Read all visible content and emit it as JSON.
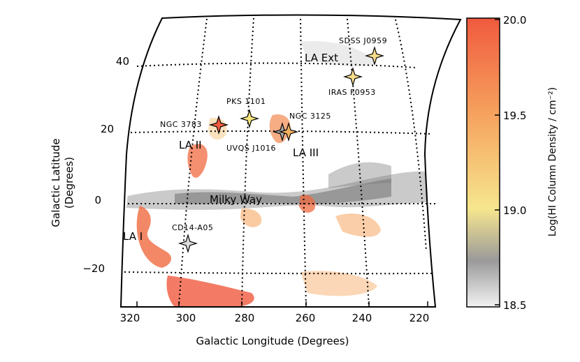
{
  "map": {
    "x_axis_label": "Galactic Longitude (Degrees)",
    "y_axis_label_line1": "Galactic Latitude",
    "y_axis_label_line2": "(Degrees)",
    "x_ticks": [
      "320",
      "300",
      "280",
      "260",
      "240",
      "220"
    ],
    "y_ticks": [
      "40",
      "20",
      "0",
      "−20"
    ],
    "regions": {
      "la_i": "LA I",
      "la_ii": "LA II",
      "la_iii": "LA III",
      "la_ext": "LA Ext",
      "milky_way": "Milky Way"
    },
    "sources": [
      {
        "name": "SDSS J0959",
        "color": "#f6dc8c"
      },
      {
        "name": "IRAS F0953",
        "color": "#f6dc8c"
      },
      {
        "name": "PKS 1101",
        "color": "#f4e47e"
      },
      {
        "name": "NGC 3783",
        "color": "#f25a3e"
      },
      {
        "name": "NGC 3125",
        "color": "#f2b160"
      },
      {
        "name": "UVQS J1016",
        "color": "#a8a8a8"
      },
      {
        "name": "CD14-A05",
        "color": "#dcdcdc"
      }
    ]
  },
  "colorbar": {
    "label": "Log(HI Column Density / cm⁻²)",
    "ticks": [
      "20.0",
      "19.5",
      "19.0",
      "18.5"
    ],
    "colors": [
      "#f05a3e",
      "#f6a660",
      "#f6e68e",
      "#9a9a9a",
      "#f2f2f2"
    ]
  }
}
